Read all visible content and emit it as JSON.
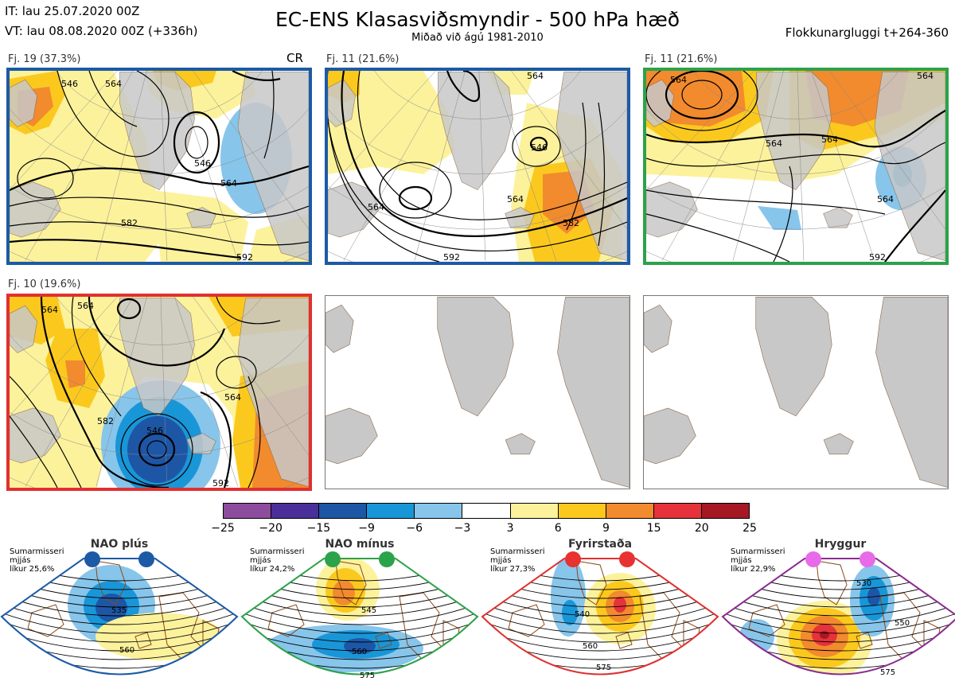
{
  "header": {
    "init_time": "IT: lau 25.07.2020 00Z",
    "valid_time": "VT: lau 08.08.2020 00Z  (+336h)",
    "title": "EC-ENS Klasasviðsmyndir - 500 hPa hæð",
    "subtitle": "Miðað við ágú 1981-2010",
    "window": "Flokkunargluggi t+264-360"
  },
  "clusters": [
    {
      "label": "Fj. 19 (37.3%)",
      "regime_code": "CR",
      "frame_color": "#1c5aa6",
      "contours": [
        "546",
        "564",
        "582",
        "592",
        "546",
        "564"
      ]
    },
    {
      "label": "Fj. 11 (21.6%)",
      "frame_color": "#1c5aa6",
      "contours": [
        "564",
        "546",
        "564",
        "564",
        "582",
        "592"
      ]
    },
    {
      "label": "Fj. 11 (21.6%)",
      "frame_color": "#2ca24a",
      "contours": [
        "564",
        "564",
        "564",
        "564",
        "564",
        "592"
      ]
    },
    {
      "label": "Fj. 10 (19.6%)",
      "frame_color": "#e03030",
      "contours": [
        "564",
        "564",
        "564",
        "546",
        "592",
        "582"
      ]
    }
  ],
  "colorbar": {
    "ticks": [
      "−25",
      "−20",
      "−15",
      "−9",
      "−6",
      "−3",
      "3",
      "6",
      "9",
      "15",
      "20",
      "25"
    ],
    "colors": [
      "#8e4c9e",
      "#4a2f9a",
      "#1e56a6",
      "#1996d8",
      "#87c5eb",
      "#ffffff",
      "#fcf29c",
      "#fbc91e",
      "#f28a2e",
      "#e6323a",
      "#a51824"
    ]
  },
  "regimes": [
    {
      "name": "NAO plús",
      "note": [
        "Sumarmisseri",
        "mjjás",
        "líkur 25,6%"
      ],
      "color": "#1c5aa6",
      "dot_color": "#1c5aa6",
      "contours": [
        "535",
        "560"
      ]
    },
    {
      "name": "NAO mínus",
      "note": [
        "Sumarmisseri",
        "mjjás",
        "líkur 24,2%"
      ],
      "color": "#2ca24a",
      "dot_color": "#2ca24a",
      "contours": [
        "545",
        "560",
        "575"
      ]
    },
    {
      "name": "Fyrirstaða",
      "note": [
        "Sumarmisseri",
        "mjjás",
        "líkur 27,3%"
      ],
      "color": "#e03030",
      "dot_color": "#e83232",
      "contours": [
        "540",
        "560",
        "575"
      ]
    },
    {
      "name": "Hryggur",
      "note": [
        "Sumarmisseri",
        "mjjás",
        "líkur 22,9%"
      ],
      "color": "#8a2d8f",
      "dot_color": "#e86ae8",
      "contours": [
        "530",
        "550",
        "575"
      ]
    }
  ]
}
